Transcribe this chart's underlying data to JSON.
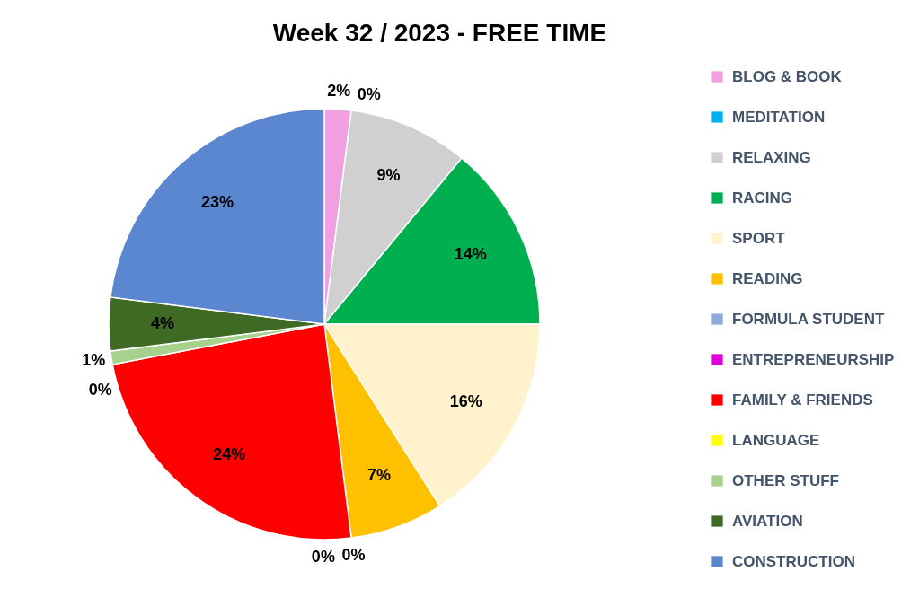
{
  "chart_data": {
    "type": "pie",
    "title": "Week 32 / 2023 - FREE TIME",
    "categories": [
      "BLOG & BOOK",
      "MEDITATION",
      "RELAXING",
      "RACING",
      "SPORT",
      "READING",
      "FORMULA STUDENT",
      "ENTREPRENEURSHIP",
      "FAMILY & FRIENDS",
      "LANGUAGE",
      "OTHER STUFF",
      "AVIATION",
      "CONSTRUCTION"
    ],
    "values": [
      2,
      0,
      9,
      14,
      16,
      7,
      0,
      0,
      24,
      0,
      1,
      4,
      23
    ],
    "value_labels": [
      "2%",
      "0%",
      "9%",
      "14%",
      "16%",
      "7%",
      "0%",
      "0%",
      "24%",
      "0%",
      "1%",
      "4%",
      "23%"
    ],
    "colors": [
      "#f0a0e0",
      "#00b0f0",
      "#d0d0d0",
      "#00b050",
      "#fff2cc",
      "#ffc000",
      "#8eaadb",
      "#e000e0",
      "#ff0000",
      "#ffff00",
      "#a9d18e",
      "#3e6a24",
      "#5b86d0"
    ],
    "legend": "right"
  }
}
